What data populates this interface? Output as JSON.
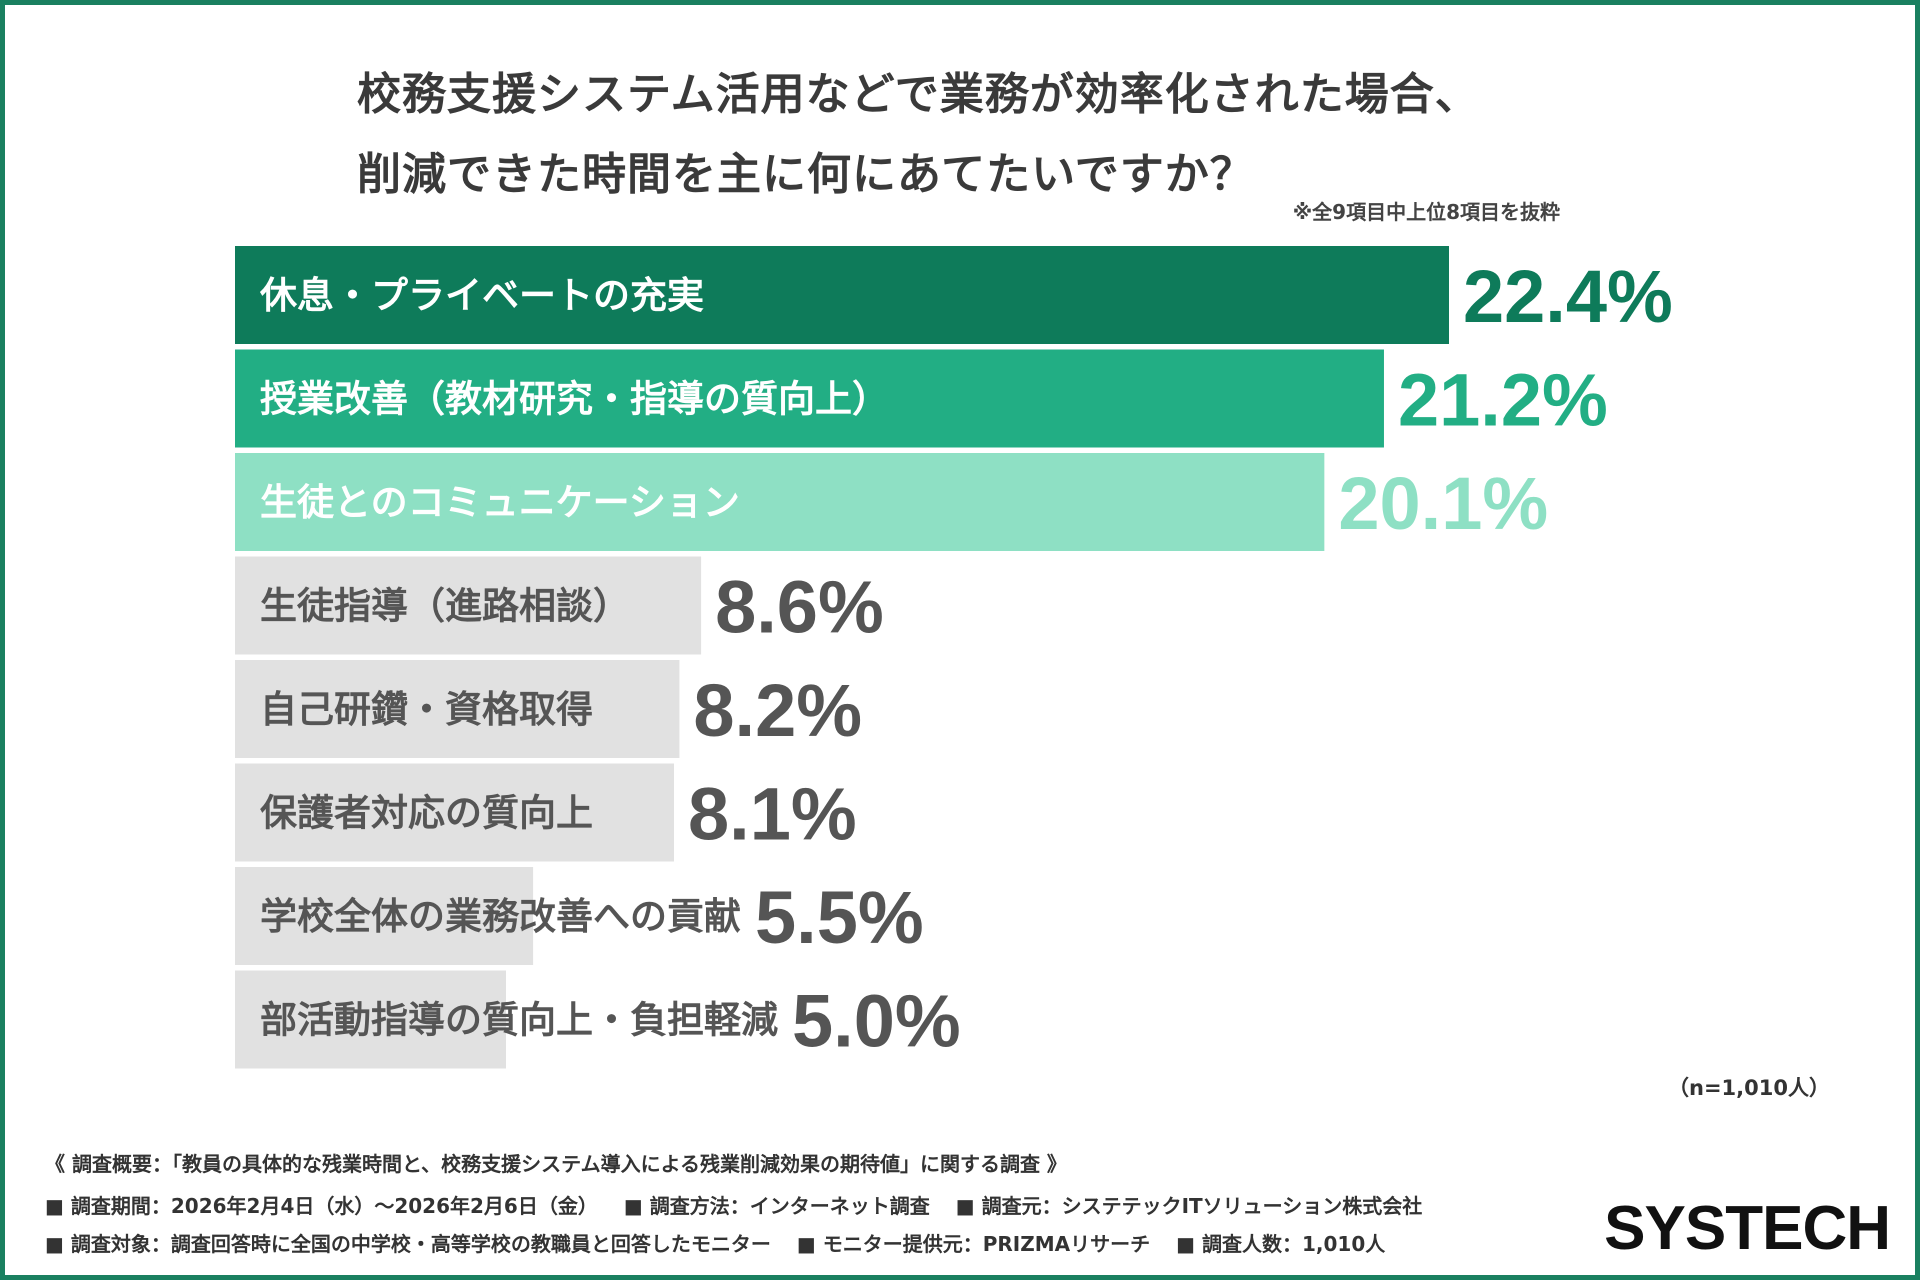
{
  "title_line1": "校務支援システム活用などで業務が効率化された場合、",
  "title_line2": "削減できた時間を主に何にあてたいですか？",
  "note": "※全9項目中上位8項目を抜粋",
  "sample_size": "（n=1,010人）",
  "footer": {
    "overview": "《 調査概要：「教員の具体的な残業時間と、校務支援システム導入による残業削減効果の期待値」に関する調査 》",
    "period": "■ 調査期間：2026年2月4日（水）～2026年2月6日（金）",
    "method": "■ 調査方法：インターネット調査",
    "organizer": "■ 調査元：システテックITソリューション株式会社",
    "target": "■ 調査対象：調査回答時に全国の中学校・高等学校の教職員と回答したモニター",
    "provider": "■ モニター提供元：PRIZMAリサーチ",
    "respondents": "■ 調査人数：1,010人"
  },
  "logo_text": "SYSTECH",
  "colors": {
    "frame": "#1a8060",
    "bar_dark": "#0e7b5a",
    "bar_mid": "#22ae84",
    "bar_light": "#8ee0c4",
    "bar_gray": "#e1e1e1",
    "text_gray": "#555555"
  },
  "chart_data": {
    "type": "bar",
    "orientation": "horizontal",
    "unit": "%",
    "categories": [
      "休息・プライベートの充実",
      "授業改善（教材研究・指導の質向上）",
      "生徒とのコミュニケーション",
      "生徒指導（進路相談）",
      "自己研鑽・資格取得",
      "保護者対応の質向上",
      "学校全体の業務改善への貢献",
      "部活動指導の質向上・負担軽減"
    ],
    "values": [
      22.4,
      21.2,
      20.1,
      8.6,
      8.2,
      8.1,
      5.5,
      5.0
    ],
    "value_labels": [
      "22.4%",
      "21.2%",
      "20.1%",
      "8.6%",
      "8.2%",
      "8.1%",
      "5.5%",
      "5.0%"
    ],
    "xlim": [
      0,
      22.4
    ],
    "grid": false,
    "legend": "none"
  }
}
